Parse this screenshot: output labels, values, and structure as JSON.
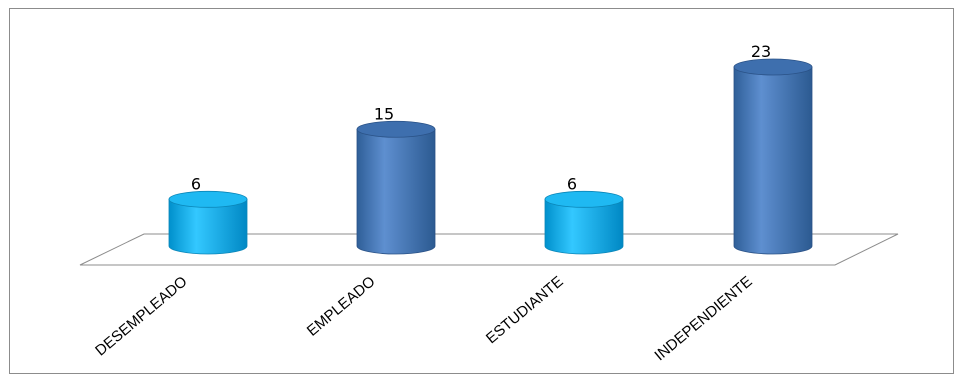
{
  "chart_data": {
    "type": "bar",
    "style": "3d-cylinder",
    "categories": [
      "DESEMPLEADO",
      "EMPLEADO",
      "ESTUDIANTE",
      "INDEPENDIENTE"
    ],
    "values": [
      6,
      15,
      6,
      23
    ],
    "data_labels": [
      "6",
      "15",
      "6",
      "23"
    ],
    "bar_colors": [
      "#00b0f0",
      "#4f81bd",
      "#00b0f0",
      "#4f81bd"
    ],
    "title": "",
    "xlabel": "",
    "ylabel": "",
    "ylim": [
      0,
      23
    ],
    "grid": false,
    "legend": "none"
  }
}
